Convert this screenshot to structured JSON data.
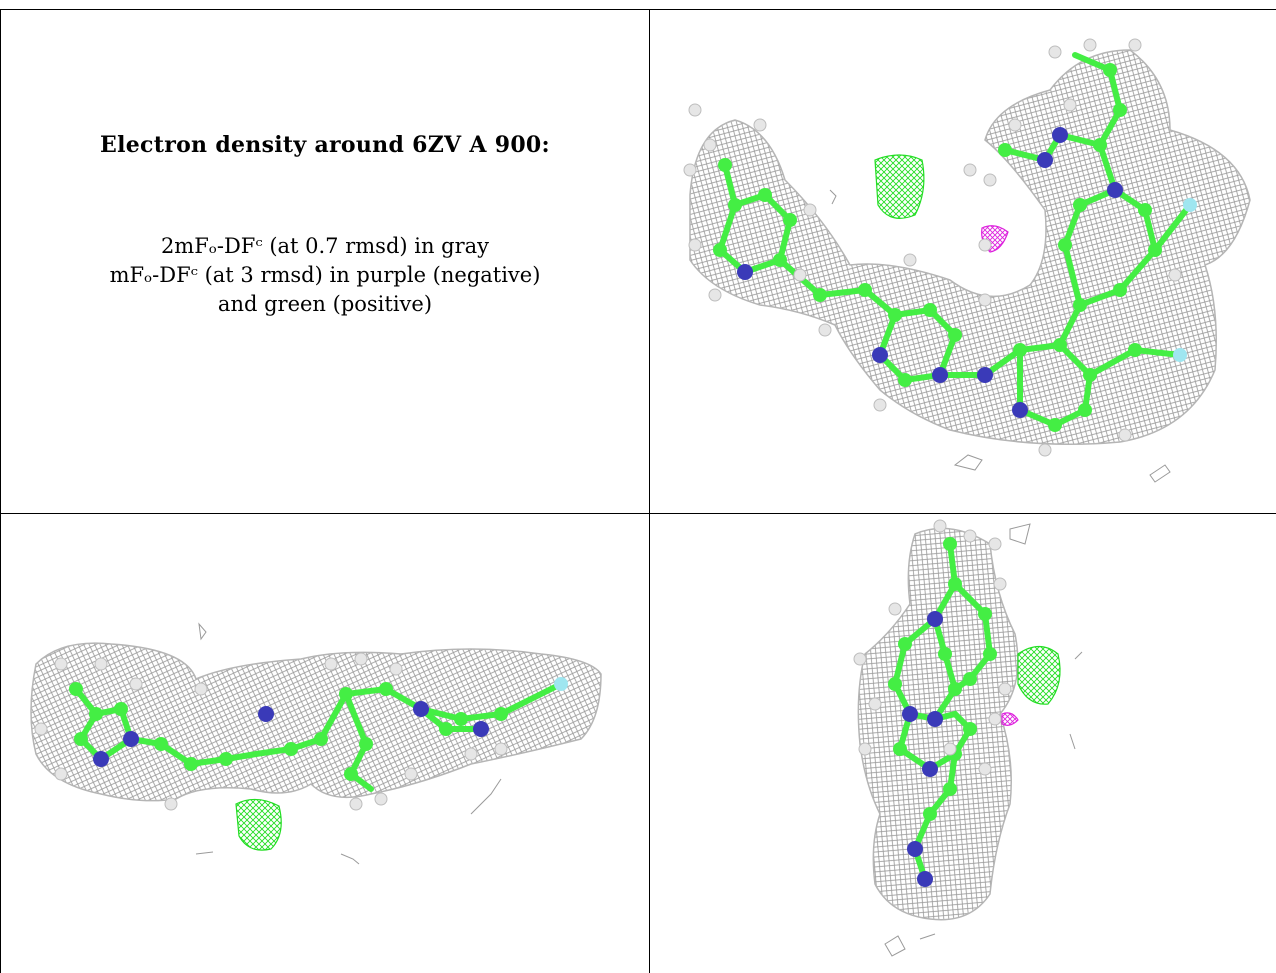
{
  "title": "Electron density around 6ZV A 900:",
  "legend": {
    "line1": "2mFₒ-DFᶜ (at 0.7 rmsd) in gray",
    "line2": "mFₒ-DFᶜ (at 3 rmsd) in purple (negative)",
    "line3": "and green (positive)"
  },
  "colors": {
    "mesh_2fofc": "#9a9a9a",
    "positive": "#22dd22",
    "negative": "#dd22dd",
    "carbon": "#44ee44",
    "nitrogen": "#3a3ab8",
    "fluorine": "#9fe6f0",
    "hydrogen": "#e6e6e6"
  },
  "panels": [
    {
      "view": "view-top-right",
      "atoms_icon": "molecule-icon"
    },
    {
      "view": "view-bottom-left",
      "atoms_icon": "molecule-icon"
    },
    {
      "view": "view-bottom-right",
      "atoms_icon": "molecule-icon"
    }
  ]
}
